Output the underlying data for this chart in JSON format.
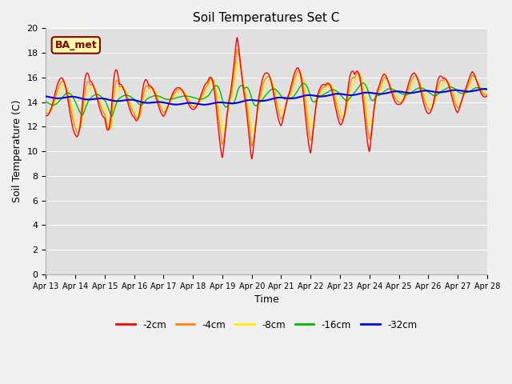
{
  "title": "Soil Temperatures Set C",
  "xlabel": "Time",
  "ylabel": "Soil Temperature (C)",
  "ylim": [
    0,
    20
  ],
  "yticks": [
    0,
    2,
    4,
    6,
    8,
    10,
    12,
    14,
    16,
    18,
    20
  ],
  "annotation_text": "BA_met",
  "series_colors": [
    "#ff0000",
    "#ff8800",
    "#ffee00",
    "#00bb00",
    "#0000ee"
  ],
  "series_labels": [
    "-2cm",
    "-4cm",
    "-8cm",
    "-16cm",
    "-32cm"
  ],
  "x_tick_labels": [
    "Apr 13",
    "Apr 14",
    "Apr 15",
    "Apr 16",
    "Apr 17",
    "Apr 18",
    "Apr 19",
    "Apr 20",
    "Apr 21",
    "Apr 22",
    "Apr 23",
    "Apr 24",
    "Apr 25",
    "Apr 26",
    "Apr 27",
    "Apr 28"
  ],
  "title_fontsize": 11,
  "tick_fontsize": 7,
  "label_fontsize": 9
}
